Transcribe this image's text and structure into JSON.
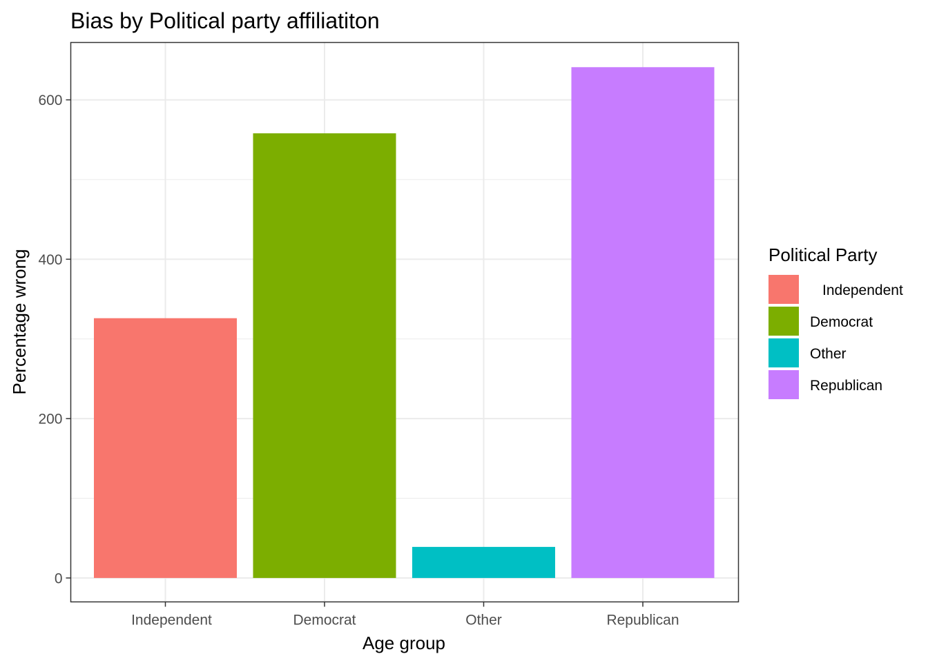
{
  "chart_data": {
    "type": "bar",
    "title": "Bias by Political party affiliatiton",
    "xlabel": "Age group",
    "ylabel": "Percentage wrong",
    "categories": [
      "Independent",
      "Democrat",
      "Other",
      "Republican"
    ],
    "values": [
      326,
      558,
      39,
      641
    ],
    "colors": [
      "#F8766D",
      "#7CAE00",
      "#00BFC4",
      "#C77CFF"
    ],
    "ylim": [
      -30,
      672
    ],
    "yticks": [
      0,
      200,
      400,
      600
    ],
    "ytick_labels": [
      "0",
      "200",
      "400",
      "600"
    ],
    "y_minor_ticks": [
      100,
      300,
      500
    ],
    "grid": true,
    "legend": {
      "title": "Political Party",
      "position": "right",
      "labels": [
        "Independent",
        "Democrat",
        "Other",
        "Republican"
      ]
    }
  }
}
